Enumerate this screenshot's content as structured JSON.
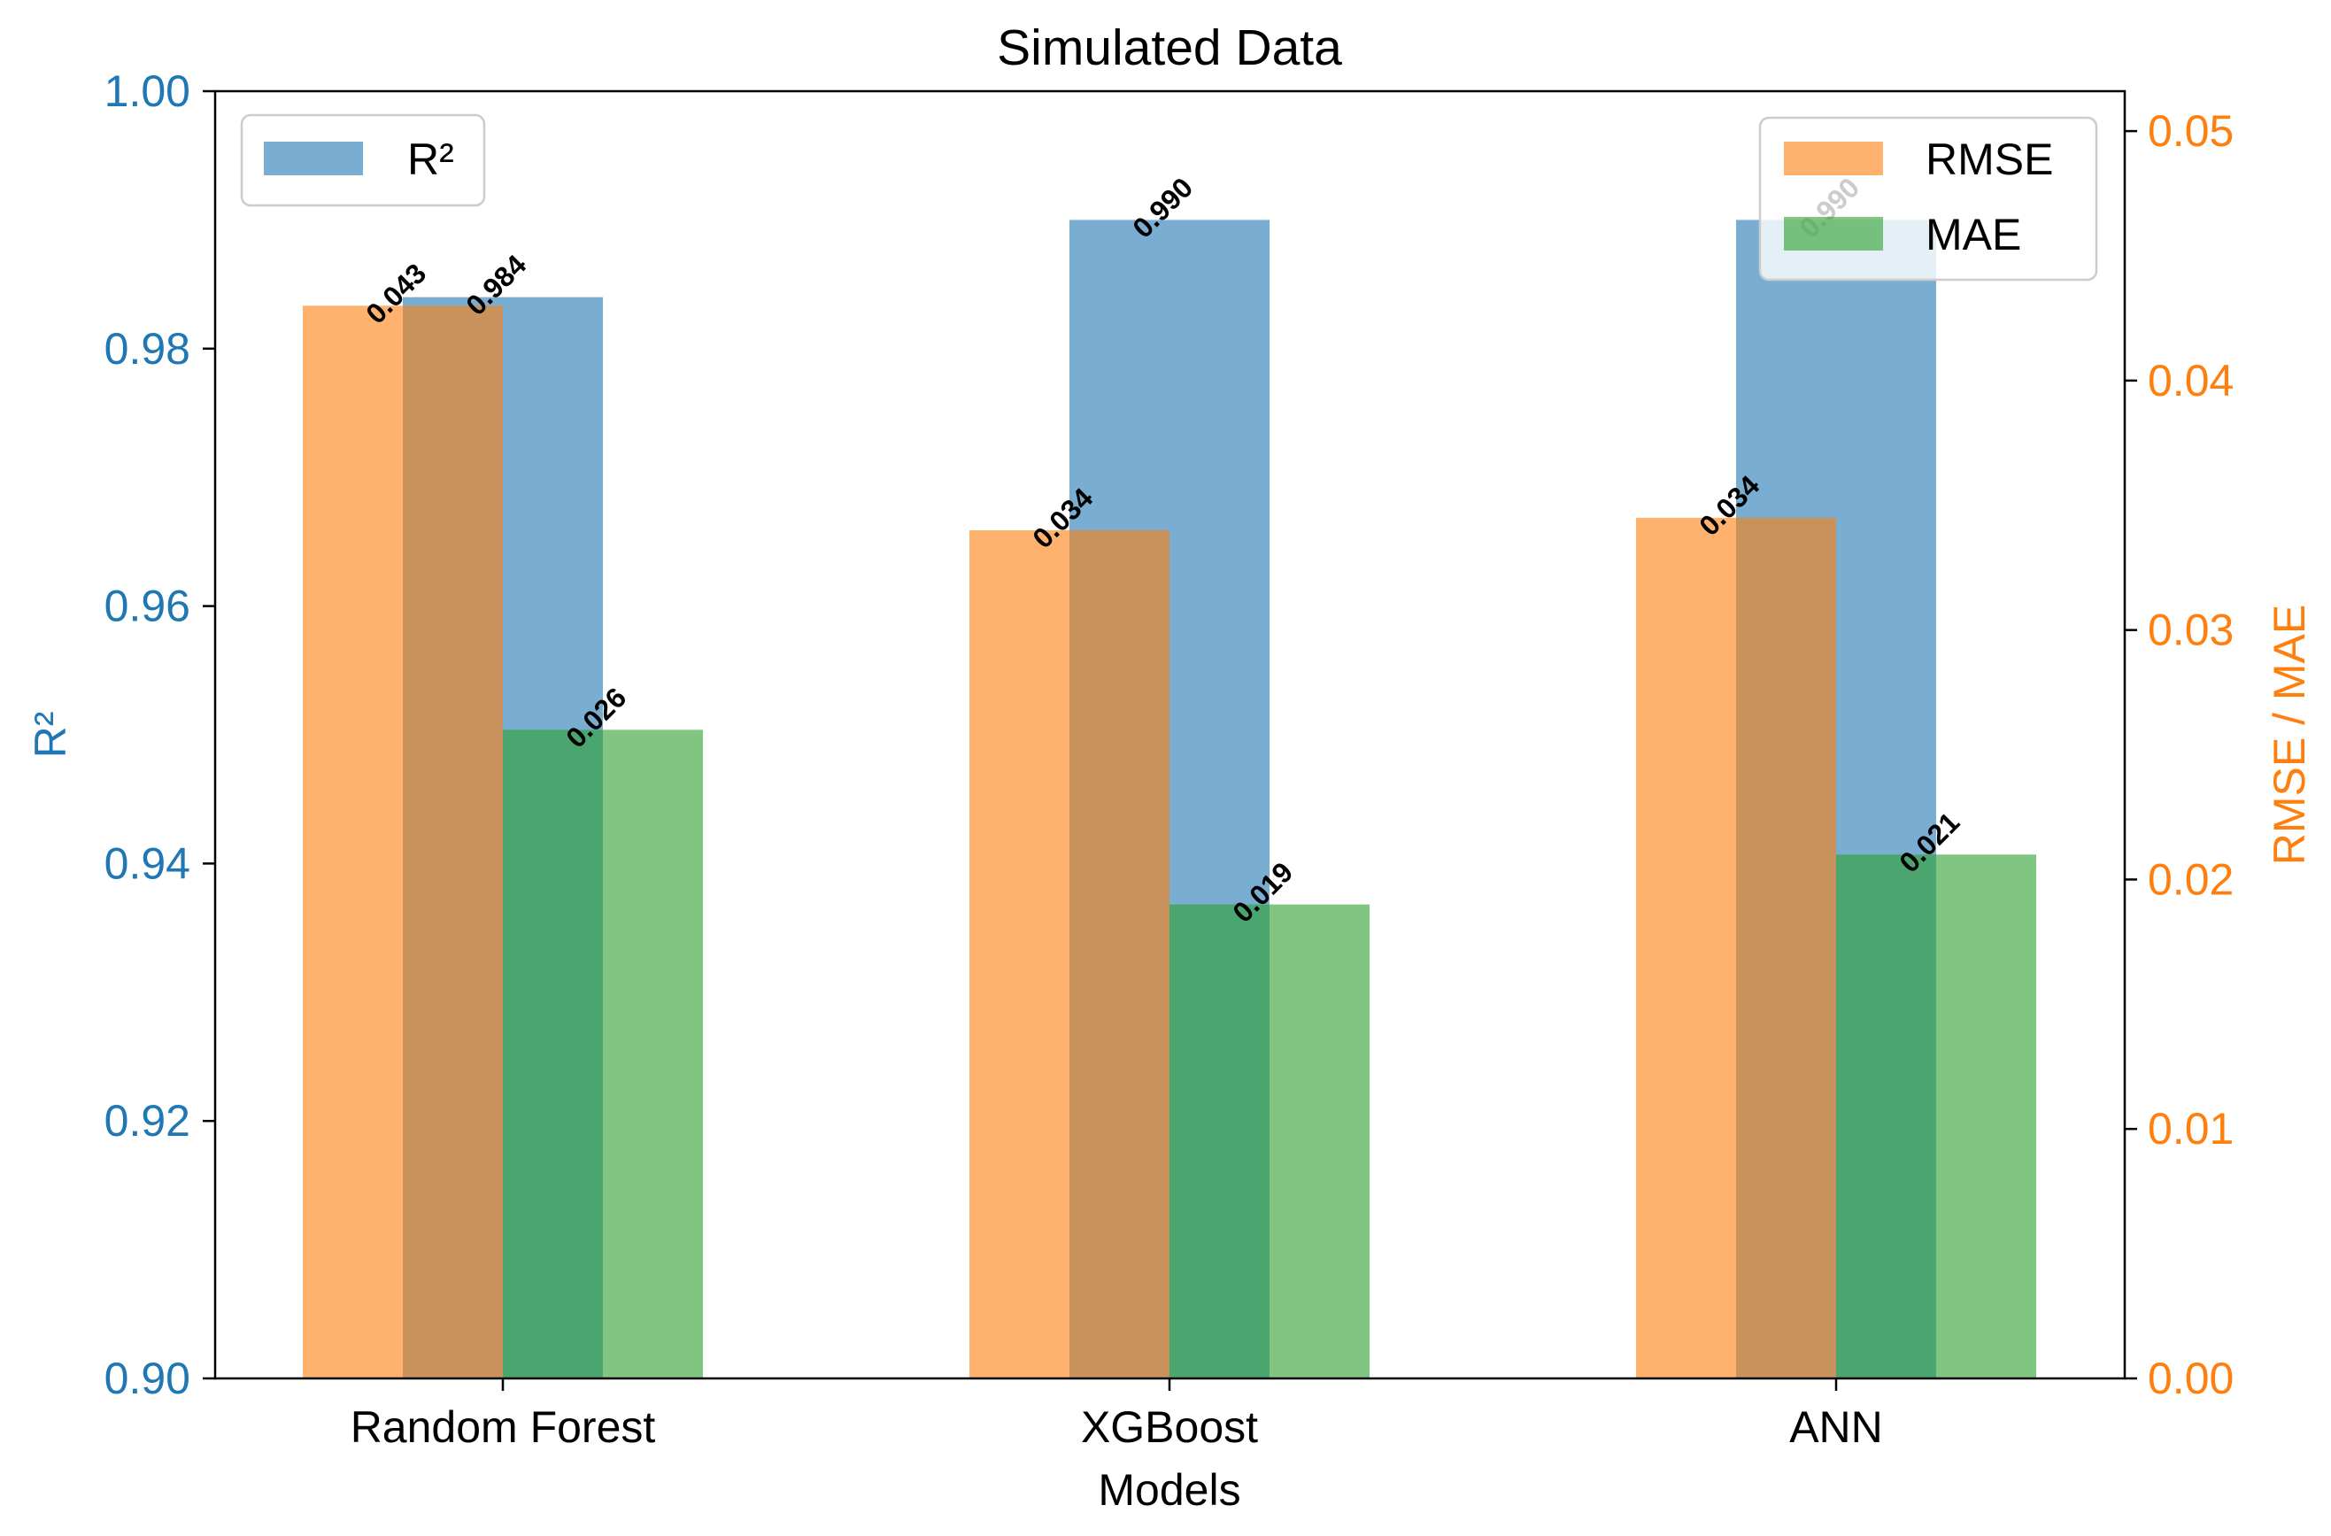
{
  "chart_data": {
    "type": "bar",
    "title": "Simulated Data",
    "xlabel": "Models",
    "categories": [
      "Random Forest",
      "XGBoost",
      "ANN"
    ],
    "left_axis": {
      "label": "R²",
      "ylim": [
        0.9,
        1.0
      ],
      "ticks": [
        0.9,
        0.92,
        0.94,
        0.96,
        0.98,
        1.0
      ],
      "tick_labels": [
        "0.90",
        "0.92",
        "0.94",
        "0.96",
        "0.98",
        "1.00"
      ],
      "color": "#1f77b4"
    },
    "right_axis": {
      "label": "RMSE / MAE",
      "ylim": [
        0.0,
        0.0516
      ],
      "ticks": [
        0.0,
        0.01,
        0.02,
        0.03,
        0.04,
        0.05
      ],
      "tick_labels": [
        "0.00",
        "0.01",
        "0.02",
        "0.03",
        "0.04",
        "0.05"
      ],
      "color": "#ff7f0e"
    },
    "series": [
      {
        "name": "R²",
        "axis": "left",
        "color": "#1f77b4",
        "values": [
          0.984,
          0.99,
          0.99
        ],
        "labels": [
          "0.984",
          "0.990",
          "0.990"
        ]
      },
      {
        "name": "RMSE",
        "axis": "right",
        "color": "#ff7f0e",
        "values": [
          0.043,
          0.034,
          0.0345
        ],
        "labels": [
          "0.043",
          "0.034",
          "0.034"
        ]
      },
      {
        "name": "MAE",
        "axis": "right",
        "color": "#2ca02c",
        "values": [
          0.026,
          0.019,
          0.021
        ],
        "labels": [
          "0.026",
          "0.019",
          "0.021"
        ]
      }
    ],
    "legends": [
      {
        "position": "top-left",
        "entries": [
          "R²"
        ]
      },
      {
        "position": "top-right",
        "entries": [
          "RMSE",
          "MAE"
        ]
      }
    ],
    "grid": false
  }
}
